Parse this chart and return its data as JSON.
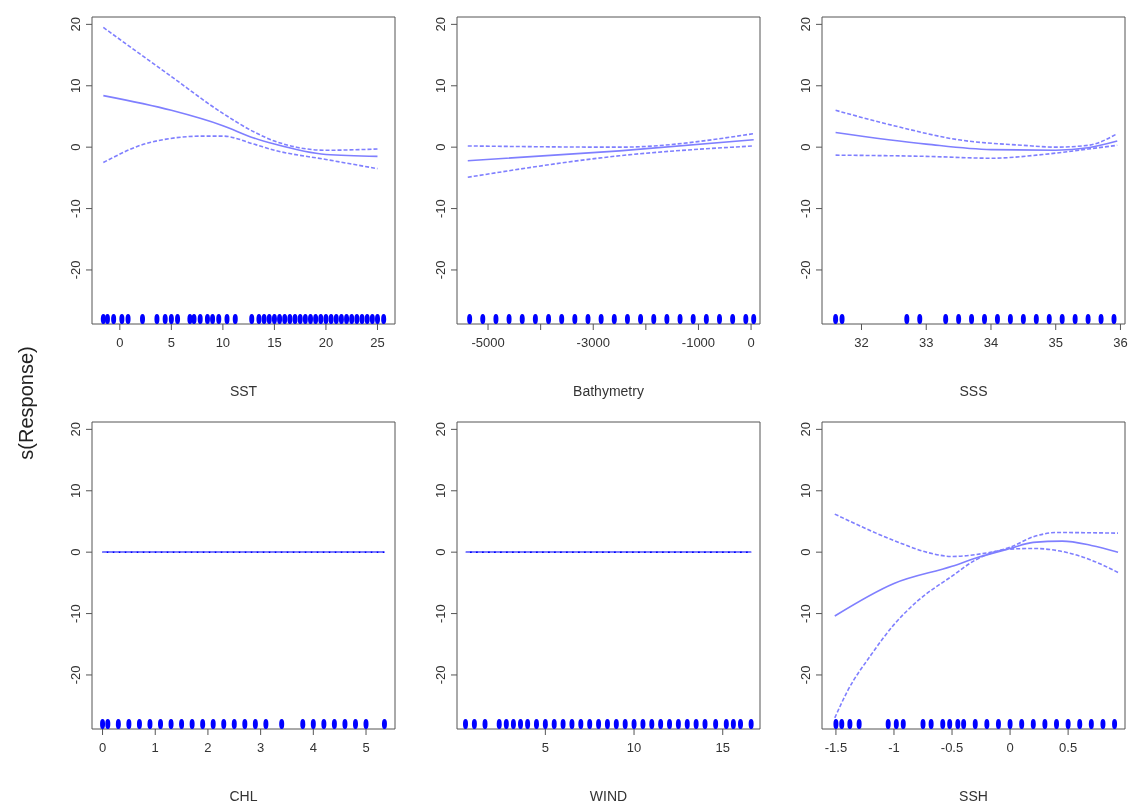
{
  "chart_data": [
    {
      "type": "line",
      "xlabel": "SST",
      "ylabel": "s(Response)",
      "xlim": [
        -2.7,
        26.7
      ],
      "xticks": [
        0,
        5,
        10,
        15,
        20,
        25
      ],
      "ylim": [
        -28.8,
        21.2
      ],
      "yticks": [
        -20,
        -10,
        0,
        10,
        20
      ],
      "series": [
        {
          "color": "#7f7fff",
          "line_style": "solid",
          "x": [
            -1.6,
            5,
            10,
            13,
            15,
            20,
            25
          ],
          "values": [
            8.4,
            6,
            3.5,
            1.5,
            0.5,
            -1.2,
            -1.5
          ]
        },
        {
          "color": "#7f7fff",
          "line_style": "dashed",
          "x": [
            -1.6,
            5,
            10,
            13,
            15,
            20,
            25
          ],
          "values": [
            19.5,
            11.5,
            5.5,
            2.5,
            1,
            -0.5,
            -0.3
          ]
        },
        {
          "color": "#7f7fff",
          "line_style": "dashed",
          "x": [
            -1.6,
            3,
            8,
            10,
            13,
            15,
            20,
            25
          ],
          "values": [
            -2.5,
            0.8,
            1.8,
            1.8,
            0.5,
            -0.5,
            -2,
            -3.5
          ]
        },
        {
          "type": "scatter",
          "color": "#0000ff",
          "x": [
            -1.6,
            -1.2,
            -0.6,
            0.2,
            0.8,
            2.2,
            3.6,
            4.4,
            5,
            5.6,
            6.8,
            7.2,
            7.8,
            8.5,
            9,
            9.6,
            10.4,
            11.2,
            12.8,
            13.5,
            14,
            14.5,
            15,
            15.5,
            16,
            16.5,
            17,
            17.5,
            18,
            18.5,
            19,
            19.5,
            20,
            20.5,
            21,
            21.5,
            22,
            22.5,
            23,
            23.5,
            24,
            24.5,
            25,
            25.6
          ],
          "values": [
            -28,
            -28,
            -28,
            -28,
            -28,
            -28,
            -28,
            -28,
            -28,
            -28,
            -28,
            -28,
            -28,
            -28,
            -28,
            -28,
            -28,
            -28,
            -28,
            -28,
            -28,
            -28,
            -28,
            -28,
            -28,
            -28,
            -28,
            -28,
            -28,
            -28,
            -28,
            -28,
            -28,
            -28,
            -28,
            -28,
            -28,
            -28,
            -28,
            -28,
            -28,
            -28,
            -28,
            -28
          ]
        }
      ]
    },
    {
      "type": "line",
      "xlabel": "Bathymetry",
      "xlim": [
        -5590,
        170
      ],
      "xticks": [
        -5000,
        {
          "value": -4000,
          "label": null
        },
        -3000,
        {
          "value": -2000,
          "label": null
        },
        -1000,
        0
      ],
      "ylim": [
        -28.8,
        21.2
      ],
      "yticks": [
        -20,
        -10,
        0,
        10,
        20
      ],
      "series": [
        {
          "color": "#7f7fff",
          "line_style": "solid",
          "x": [
            -5385,
            -2500,
            50
          ],
          "values": [
            -2.2,
            -0.6,
            1.2
          ]
        },
        {
          "color": "#7f7fff",
          "line_style": "dashed",
          "x": [
            -5385,
            -2500,
            50
          ],
          "values": [
            0.2,
            0,
            2.2
          ]
        },
        {
          "color": "#7f7fff",
          "line_style": "dashed",
          "x": [
            -5385,
            -2500,
            50
          ],
          "values": [
            -4.9,
            -1.4,
            0.2
          ]
        },
        {
          "type": "scatter",
          "color": "#0000ff",
          "x": [
            -5350,
            -5100,
            -4850,
            -4600,
            -4350,
            -4100,
            -3850,
            -3600,
            -3350,
            -3100,
            -2850,
            -2600,
            -2350,
            -2100,
            -1850,
            -1600,
            -1350,
            -1100,
            -850,
            -600,
            -350,
            -100,
            50
          ],
          "values": [
            -28,
            -28,
            -28,
            -28,
            -28,
            -28,
            -28,
            -28,
            -28,
            -28,
            -28,
            -28,
            -28,
            -28,
            -28,
            -28,
            -28,
            -28,
            -28,
            -28,
            -28,
            -28,
            -28
          ]
        }
      ]
    },
    {
      "type": "line",
      "xlabel": "SSS",
      "xlim": [
        31.39,
        36.07
      ],
      "xticks": [
        32,
        33,
        34,
        35,
        36
      ],
      "ylim": [
        -28.8,
        21.2
      ],
      "yticks": [
        -20,
        -10,
        0,
        10,
        20
      ],
      "series": [
        {
          "color": "#7f7fff",
          "line_style": "solid",
          "x": [
            31.6,
            33,
            34,
            35,
            35.5,
            35.95
          ],
          "values": [
            2.4,
            0.5,
            -0.4,
            -0.5,
            -0.1,
            1
          ]
        },
        {
          "color": "#7f7fff",
          "line_style": "dashed",
          "x": [
            31.6,
            32.5,
            33.5,
            34.5,
            35,
            35.5,
            35.95
          ],
          "values": [
            6,
            3.5,
            1.2,
            0.3,
            0,
            0.3,
            2.2
          ]
        },
        {
          "color": "#7f7fff",
          "line_style": "dashed",
          "x": [
            31.6,
            33,
            34,
            34.8,
            35.5,
            35.95
          ],
          "values": [
            -1.3,
            -1.5,
            -1.8,
            -1.2,
            -0.3,
            0.3
          ]
        },
        {
          "type": "scatter",
          "color": "#0000ff",
          "x": [
            31.6,
            31.7,
            32.7,
            32.9,
            33.3,
            33.5,
            33.7,
            33.9,
            34.1,
            34.3,
            34.5,
            34.7,
            34.9,
            35.1,
            35.3,
            35.5,
            35.7,
            35.9
          ],
          "values": [
            -28,
            -28,
            -28,
            -28,
            -28,
            -28,
            -28,
            -28,
            -28,
            -28,
            -28,
            -28,
            -28,
            -28,
            -28,
            -28,
            -28,
            -28
          ]
        }
      ]
    },
    {
      "type": "line",
      "xlabel": "CHL",
      "xlim": [
        -0.2,
        5.55
      ],
      "xticks": [
        0,
        1,
        2,
        3,
        4,
        5
      ],
      "ylim": [
        -28.8,
        21.2
      ],
      "yticks": [
        -20,
        -10,
        0,
        10,
        20
      ],
      "series": [
        {
          "color": "#0000ff",
          "line_style": "solid",
          "x": [
            0,
            5.35
          ],
          "values": [
            0,
            0
          ]
        },
        {
          "color": "#7f7fff",
          "line_style": "dashed",
          "x": [
            0,
            5.35
          ],
          "values": [
            0,
            0
          ]
        },
        {
          "color": "#7f7fff",
          "line_style": "dashed",
          "x": [
            0,
            5.35
          ],
          "values": [
            0,
            0
          ]
        },
        {
          "type": "scatter",
          "color": "#0000ff",
          "x": [
            0,
            0.1,
            0.3,
            0.5,
            0.7,
            0.9,
            1.1,
            1.3,
            1.5,
            1.7,
            1.9,
            2.1,
            2.3,
            2.5,
            2.7,
            2.9,
            3.1,
            3.4,
            3.8,
            4,
            4.2,
            4.4,
            4.6,
            4.8,
            5,
            5.35
          ],
          "values": [
            -28,
            -28,
            -28,
            -28,
            -28,
            -28,
            -28,
            -28,
            -28,
            -28,
            -28,
            -28,
            -28,
            -28,
            -28,
            -28,
            -28,
            -28,
            -28,
            -28,
            -28,
            -28,
            -28,
            -28,
            -28,
            -28
          ]
        }
      ]
    },
    {
      "type": "line",
      "xlabel": "WIND",
      "xlim": [
        0.02,
        17.1
      ],
      "xticks": [
        5,
        10,
        15
      ],
      "ylim": [
        -28.8,
        21.2
      ],
      "yticks": [
        -20,
        -10,
        0,
        10,
        20
      ],
      "series": [
        {
          "color": "#0000ff",
          "line_style": "solid",
          "x": [
            0.52,
            16.6
          ],
          "values": [
            0,
            0
          ]
        },
        {
          "color": "#7f7fff",
          "line_style": "dashed",
          "x": [
            0.52,
            16.6
          ],
          "values": [
            0,
            0
          ]
        },
        {
          "color": "#7f7fff",
          "line_style": "dashed",
          "x": [
            0.52,
            16.6
          ],
          "values": [
            0,
            0
          ]
        },
        {
          "type": "scatter",
          "color": "#0000ff",
          "x": [
            0.5,
            1,
            1.6,
            2.4,
            2.8,
            3.2,
            3.6,
            4,
            4.5,
            5,
            5.5,
            6,
            6.5,
            7,
            7.5,
            8,
            8.5,
            9,
            9.5,
            10,
            10.5,
            11,
            11.5,
            12,
            12.5,
            13,
            13.5,
            14,
            14.6,
            15.2,
            15.6,
            16,
            16.6
          ],
          "values": [
            -28,
            -28,
            -28,
            -28,
            -28,
            -28,
            -28,
            -28,
            -28,
            -28,
            -28,
            -28,
            -28,
            -28,
            -28,
            -28,
            -28,
            -28,
            -28,
            -28,
            -28,
            -28,
            -28,
            -28,
            -28,
            -28,
            -28,
            -28,
            -28,
            -28,
            -28,
            -28,
            -28
          ]
        }
      ]
    },
    {
      "type": "line",
      "xlabel": "SSH",
      "xlim": [
        -1.62,
        0.99
      ],
      "xticks": [
        -1.5,
        -1.0,
        -0.5,
        0.0,
        0.5
      ],
      "ylim": [
        -28.8,
        21.2
      ],
      "yticks": [
        -20,
        -10,
        0,
        10,
        20
      ],
      "series": [
        {
          "color": "#7f7fff",
          "line_style": "solid",
          "x": [
            -1.51,
            -1,
            -0.5,
            -0.3,
            0,
            0.2,
            0.45,
            0.7,
            0.93
          ],
          "values": [
            -10.4,
            -5.1,
            -2.3,
            -1,
            0.6,
            1.6,
            1.8,
            1.1,
            0
          ]
        },
        {
          "color": "#7f7fff",
          "line_style": "dashed",
          "x": [
            -1.51,
            -1,
            -0.7,
            -0.5,
            -0.3,
            0,
            0.2,
            0.4,
            0.93
          ],
          "values": [
            6.2,
            1.9,
            -0.1,
            -0.7,
            -0.4,
            0.8,
            2.5,
            3.2,
            3.1
          ]
        },
        {
          "color": "#7f7fff",
          "line_style": "dashed",
          "x": [
            -1.51,
            -1.4,
            -1.2,
            -1,
            -0.8,
            -0.5,
            -0.3,
            0,
            0.2,
            0.5,
            0.7,
            0.93
          ],
          "values": [
            -27,
            -22.6,
            -16.8,
            -11.8,
            -8,
            -3.9,
            -1.3,
            0.5,
            0.6,
            -0.1,
            -1.3,
            -3.3
          ]
        },
        {
          "type": "scatter",
          "color": "#0000ff",
          "x": [
            -1.5,
            -1.45,
            -1.38,
            -1.3,
            -1.05,
            -0.98,
            -0.92,
            -0.75,
            -0.68,
            -0.58,
            -0.52,
            -0.45,
            -0.4,
            -0.3,
            -0.2,
            -0.1,
            0,
            0.1,
            0.2,
            0.3,
            0.4,
            0.5,
            0.6,
            0.7,
            0.8,
            0.9
          ],
          "values": [
            -28,
            -28,
            -28,
            -28,
            -28,
            -28,
            -28,
            -28,
            -28,
            -28,
            -28,
            -28,
            -28,
            -28,
            -28,
            -28,
            -28,
            -28,
            -28,
            -28,
            -28,
            -28,
            -28,
            -28,
            -28,
            -28
          ]
        }
      ]
    }
  ]
}
